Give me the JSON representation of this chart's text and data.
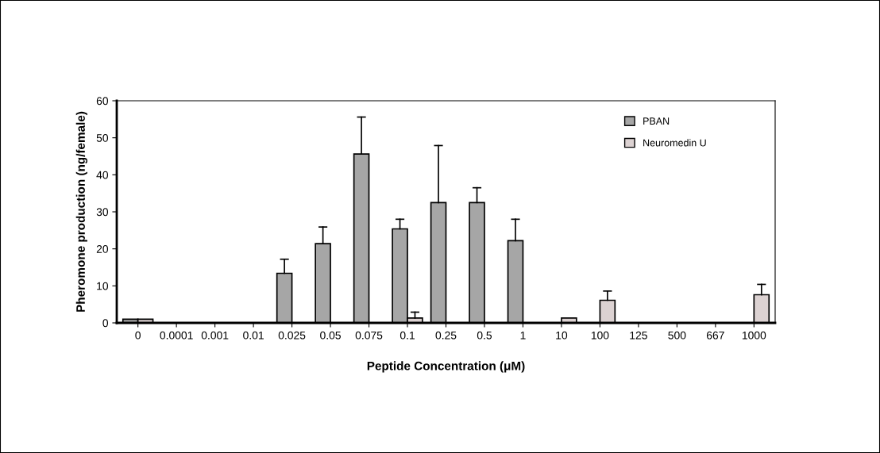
{
  "chart_data": {
    "type": "bar",
    "xlabel": "Peptide Concentration (μM)",
    "ylabel": "Pheromone production (ng/female)",
    "categories": [
      "0",
      "0.0001",
      "0.001",
      "0.01",
      "0.025",
      "0.05",
      "0.075",
      "0.1",
      "0.25",
      "0.5",
      "1",
      "10",
      "100",
      "125",
      "500",
      "667",
      "1000"
    ],
    "series": [
      {
        "name": "PBAN",
        "color": "#a6a6a6",
        "values": [
          1.0,
          null,
          null,
          null,
          13.4,
          21.4,
          45.6,
          25.4,
          32.5,
          32.5,
          22.2,
          null,
          null,
          null,
          null,
          null,
          null
        ],
        "errors": [
          null,
          null,
          null,
          null,
          3.8,
          4.5,
          10.0,
          2.6,
          15.4,
          4.0,
          5.8,
          null,
          null,
          null,
          null,
          null,
          null
        ]
      },
      {
        "name": "Neuromedin U",
        "color": "#dcd2d2",
        "values": [
          1.0,
          null,
          null,
          null,
          null,
          null,
          null,
          1.3,
          null,
          null,
          null,
          1.3,
          6.1,
          null,
          null,
          null,
          7.6
        ],
        "errors": [
          null,
          null,
          null,
          null,
          null,
          null,
          null,
          1.6,
          null,
          null,
          null,
          null,
          2.5,
          null,
          null,
          null,
          2.8
        ]
      }
    ],
    "ylim": [
      0,
      60
    ],
    "yticks": [
      0,
      10,
      20,
      30,
      40,
      50,
      60
    ],
    "grid": false,
    "legend": "top right"
  }
}
